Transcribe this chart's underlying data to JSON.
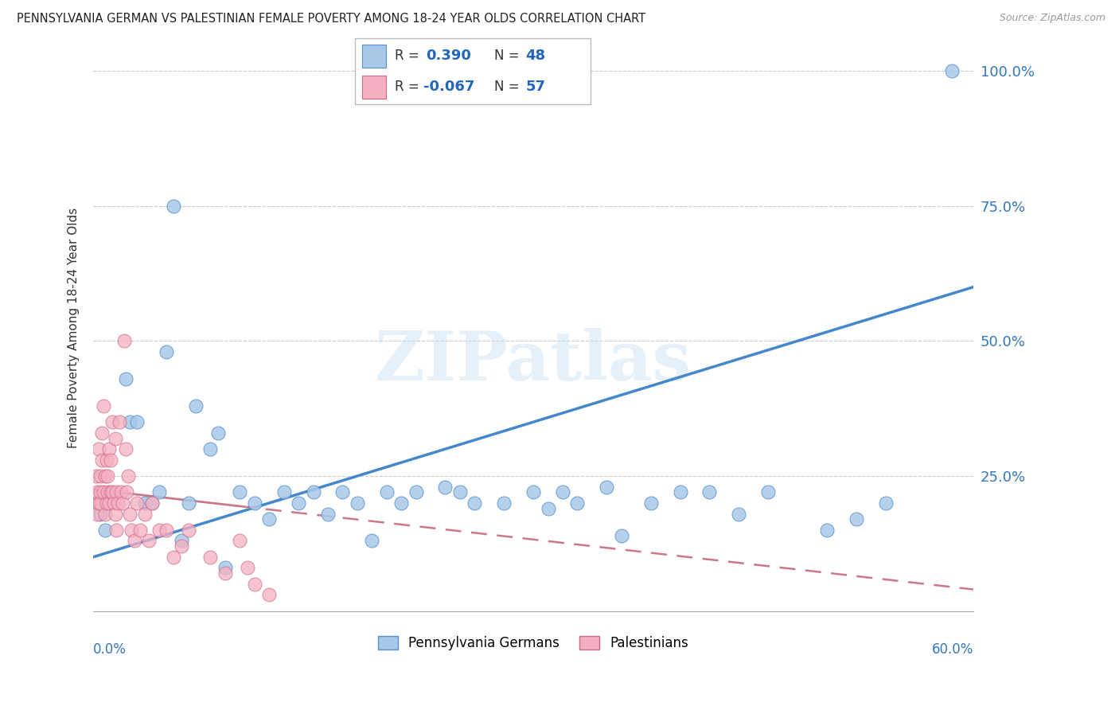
{
  "title": "PENNSYLVANIA GERMAN VS PALESTINIAN FEMALE POVERTY AMONG 18-24 YEAR OLDS CORRELATION CHART",
  "source": "Source: ZipAtlas.com",
  "ylabel": "Female Poverty Among 18-24 Year Olds",
  "xlim": [
    0.0,
    0.6
  ],
  "ylim": [
    0.0,
    1.05
  ],
  "watermark_text": "ZIPatlas",
  "blue_color": "#A8C8E8",
  "blue_edge": "#5590CC",
  "pink_color": "#F4B0C0",
  "pink_edge": "#D06888",
  "blue_line_color": "#4488CC",
  "pink_line_color": "#CC7788",
  "ytick_vals": [
    0.25,
    0.5,
    0.75,
    1.0
  ],
  "ytick_labels": [
    "25.0%",
    "50.0%",
    "75.0%",
    "100.0%"
  ],
  "blue_x": [
    0.585,
    0.005,
    0.008,
    0.022,
    0.025,
    0.03,
    0.035,
    0.04,
    0.045,
    0.05,
    0.055,
    0.06,
    0.065,
    0.07,
    0.08,
    0.085,
    0.09,
    0.1,
    0.11,
    0.12,
    0.13,
    0.14,
    0.15,
    0.16,
    0.17,
    0.18,
    0.19,
    0.2,
    0.21,
    0.22,
    0.24,
    0.25,
    0.26,
    0.28,
    0.3,
    0.31,
    0.32,
    0.33,
    0.35,
    0.36,
    0.38,
    0.4,
    0.42,
    0.44,
    0.46,
    0.5,
    0.52,
    0.54
  ],
  "blue_y": [
    1.0,
    0.18,
    0.15,
    0.43,
    0.35,
    0.35,
    0.2,
    0.2,
    0.22,
    0.48,
    0.75,
    0.13,
    0.2,
    0.38,
    0.3,
    0.33,
    0.08,
    0.22,
    0.2,
    0.17,
    0.22,
    0.2,
    0.22,
    0.18,
    0.22,
    0.2,
    0.13,
    0.22,
    0.2,
    0.22,
    0.23,
    0.22,
    0.2,
    0.2,
    0.22,
    0.19,
    0.22,
    0.2,
    0.23,
    0.14,
    0.2,
    0.22,
    0.22,
    0.18,
    0.22,
    0.15,
    0.17,
    0.2
  ],
  "pink_x": [
    0.001,
    0.002,
    0.003,
    0.003,
    0.004,
    0.004,
    0.005,
    0.005,
    0.005,
    0.006,
    0.006,
    0.007,
    0.007,
    0.008,
    0.008,
    0.009,
    0.009,
    0.01,
    0.01,
    0.011,
    0.011,
    0.012,
    0.012,
    0.013,
    0.013,
    0.014,
    0.015,
    0.015,
    0.016,
    0.016,
    0.017,
    0.018,
    0.019,
    0.02,
    0.021,
    0.022,
    0.023,
    0.024,
    0.025,
    0.026,
    0.028,
    0.03,
    0.032,
    0.035,
    0.038,
    0.04,
    0.045,
    0.05,
    0.055,
    0.06,
    0.065,
    0.08,
    0.09,
    0.1,
    0.105,
    0.11,
    0.12
  ],
  "pink_y": [
    0.2,
    0.25,
    0.22,
    0.18,
    0.3,
    0.2,
    0.25,
    0.2,
    0.22,
    0.28,
    0.33,
    0.38,
    0.22,
    0.25,
    0.18,
    0.28,
    0.2,
    0.22,
    0.25,
    0.3,
    0.2,
    0.28,
    0.22,
    0.35,
    0.22,
    0.2,
    0.18,
    0.32,
    0.15,
    0.22,
    0.2,
    0.35,
    0.22,
    0.2,
    0.5,
    0.3,
    0.22,
    0.25,
    0.18,
    0.15,
    0.13,
    0.2,
    0.15,
    0.18,
    0.13,
    0.2,
    0.15,
    0.15,
    0.1,
    0.12,
    0.15,
    0.1,
    0.07,
    0.13,
    0.08,
    0.05,
    0.03
  ],
  "blue_trend_x0": 0.0,
  "blue_trend_y0": 0.1,
  "blue_trend_x1": 0.6,
  "blue_trend_y1": 0.6,
  "pink_trend_x0": 0.0,
  "pink_trend_y0": 0.225,
  "pink_trend_x1": 0.6,
  "pink_trend_y1": 0.04
}
